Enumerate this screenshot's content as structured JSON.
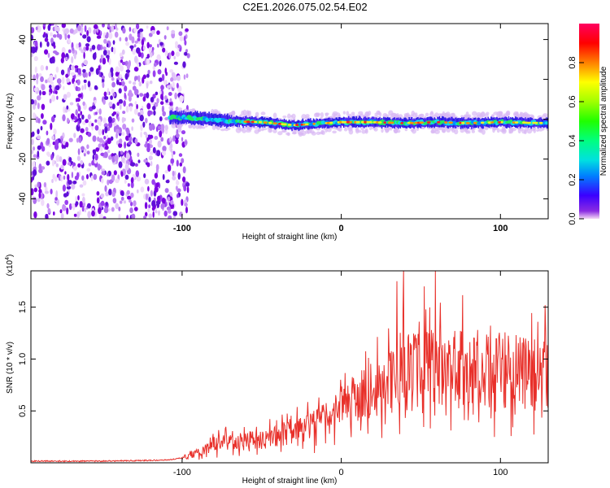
{
  "title": "C2E1.2026.075.02.54.E02",
  "colorbar": {
    "label": "Normalized spectral amplitude",
    "ticks": [
      "0.0",
      "0.2",
      "0.4",
      "0.6",
      "0.8"
    ],
    "tick_values": [
      0.0,
      0.2,
      0.4,
      0.6,
      0.8
    ],
    "range": [
      0,
      1
    ]
  },
  "chart_data": [
    {
      "type": "heatmap",
      "xlabel": "Height of straight line (km)",
      "ylabel": "Frequency (Hz)",
      "xlim": [
        -195,
        130
      ],
      "ylim": [
        -50,
        48
      ],
      "xticks": [
        -100,
        0,
        100
      ],
      "xtick_labels": [
        "-100",
        "0",
        "100"
      ],
      "yticks": [
        40,
        20,
        0,
        -20,
        -40
      ],
      "ytick_labels": [
        "40",
        "20",
        "0",
        "-20",
        "-40"
      ],
      "noise_region_x": [
        -195,
        -100
      ],
      "signal_start_x": -108,
      "signal_track": {
        "x": [
          -108,
          -90,
          -70,
          -50,
          -30,
          -10,
          0,
          20,
          40,
          60,
          80,
          100,
          130
        ],
        "freq": [
          1.0,
          0.5,
          -1.0,
          -1.5,
          -3.0,
          -2.0,
          -1.5,
          -1.5,
          -2.0,
          -1.5,
          -2.0,
          -1.5,
          -2.0
        ]
      }
    },
    {
      "type": "line",
      "xlabel": "Height of straight line (km)",
      "ylabel": "SNR (10 * v/v)",
      "scale_label_base": "(x10",
      "scale_label_exp": "4",
      "scale_label_end": ")",
      "xlim": [
        -195,
        130
      ],
      "ylim": [
        0,
        1.85
      ],
      "xticks": [
        -100,
        0,
        100
      ],
      "xtick_labels": [
        "-100",
        "0",
        "100"
      ],
      "yticks": [
        1.5,
        1.0,
        0.5
      ],
      "ytick_labels": [
        "1.5",
        "1.0",
        "0.5"
      ],
      "color": "#e8302a",
      "series": [
        {
          "name": "SNR",
          "x": [
            -195,
            -150,
            -110,
            -100,
            -90,
            -80,
            -70,
            -60,
            -50,
            -40,
            -30,
            -20,
            -10,
            0,
            10,
            20,
            30,
            40,
            50,
            60,
            70,
            80,
            90,
            100,
            110,
            120,
            130
          ],
          "values": [
            0.01,
            0.01,
            0.02,
            0.04,
            0.1,
            0.18,
            0.22,
            0.22,
            0.22,
            0.26,
            0.3,
            0.35,
            0.42,
            0.52,
            0.62,
            0.72,
            0.82,
            0.88,
            0.9,
            0.92,
            0.93,
            0.92,
            0.9,
            0.9,
            0.88,
            0.86,
            0.85
          ]
        }
      ],
      "peaks": [
        {
          "x": 39,
          "value": 1.86
        },
        {
          "x": 59,
          "value": 1.85
        },
        {
          "x": 35,
          "value": 1.75
        },
        {
          "x": 52,
          "value": 1.7
        },
        {
          "x": 128,
          "value": 1.52
        }
      ]
    }
  ]
}
